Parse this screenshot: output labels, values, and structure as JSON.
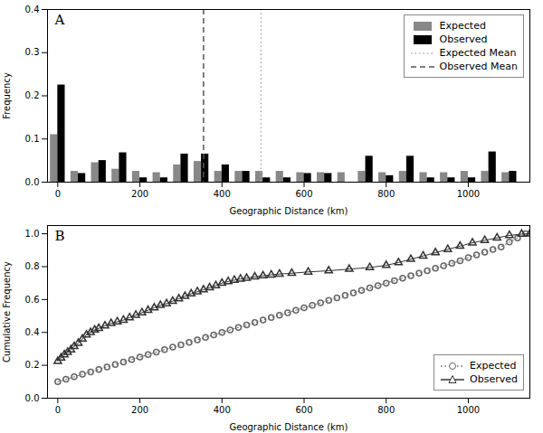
{
  "chart_data": [
    {
      "type": "bar",
      "title": "A",
      "xlabel": "Geographic Distance (km)",
      "ylabel": "Frequency",
      "x": [
        0,
        50,
        100,
        150,
        200,
        250,
        300,
        350,
        400,
        450,
        500,
        550,
        600,
        650,
        700,
        750,
        800,
        850,
        900,
        950,
        1000,
        1050,
        1100
      ],
      "series": [
        {
          "name": "Expected",
          "color": "#888888",
          "values": [
            0.11,
            0.025,
            0.045,
            0.03,
            0.025,
            0.022,
            0.04,
            0.048,
            0.025,
            0.025,
            0.025,
            0.025,
            0.022,
            0.022,
            0.022,
            0.025,
            0.022,
            0.025,
            0.022,
            0.022,
            0.025,
            0.025,
            0.022
          ]
        },
        {
          "name": "Observed",
          "color": "#000000",
          "values": [
            0.225,
            0.02,
            0.05,
            0.068,
            0.01,
            0.01,
            0.065,
            0.065,
            0.04,
            0.025,
            0.01,
            0.01,
            0.02,
            0.02,
            0.0,
            0.06,
            0.015,
            0.06,
            0.01,
            0.01,
            0.01,
            0.07,
            0.025
          ]
        },
        {
          "name": "Expected Mean",
          "type": "rule",
          "color": "#aaaaaa",
          "line_style": "dotted",
          "x": 495
        },
        {
          "name": "Observed Mean",
          "type": "rule",
          "color": "#555555",
          "line_style": "dashed",
          "x": 355
        }
      ],
      "xlim": [
        -25,
        1150
      ],
      "ylim": [
        0,
        0.4
      ],
      "xticks": [
        0,
        200,
        400,
        600,
        800,
        1000
      ],
      "yticks": [
        {
          "value": 0,
          "label": "0.0"
        },
        0.1,
        0.2,
        0.3,
        0.4
      ],
      "grid": false,
      "legend": "upper right"
    },
    {
      "type": "line",
      "title": "B",
      "xlabel": "Geographic Distance (km)",
      "ylabel": "Cumulative Frequency",
      "series": [
        {
          "name": "Expected",
          "color": "#666666",
          "marker": "circle",
          "line_style": "dotted",
          "x": [
            0,
            20,
            40,
            60,
            80,
            100,
            120,
            140,
            160,
            180,
            200,
            220,
            240,
            260,
            280,
            300,
            320,
            340,
            360,
            380,
            400,
            420,
            440,
            460,
            480,
            500,
            520,
            540,
            560,
            580,
            600,
            620,
            640,
            660,
            680,
            700,
            720,
            740,
            760,
            780,
            800,
            820,
            840,
            860,
            880,
            900,
            920,
            940,
            960,
            980,
            1000,
            1020,
            1040,
            1060,
            1080,
            1100,
            1120,
            1140
          ],
          "values": [
            0.1,
            0.115,
            0.13,
            0.145,
            0.16,
            0.175,
            0.19,
            0.205,
            0.22,
            0.235,
            0.25,
            0.265,
            0.28,
            0.295,
            0.31,
            0.325,
            0.34,
            0.355,
            0.37,
            0.385,
            0.4,
            0.415,
            0.43,
            0.445,
            0.46,
            0.475,
            0.49,
            0.505,
            0.52,
            0.535,
            0.55,
            0.565,
            0.58,
            0.595,
            0.61,
            0.625,
            0.64,
            0.655,
            0.67,
            0.685,
            0.7,
            0.715,
            0.73,
            0.745,
            0.76,
            0.775,
            0.79,
            0.805,
            0.82,
            0.835,
            0.855,
            0.872,
            0.888,
            0.904,
            0.92,
            0.95,
            0.975,
            1.0
          ]
        },
        {
          "name": "Observed",
          "color": "#333333",
          "marker": "triangle",
          "line_style": "solid",
          "x": [
            0,
            8,
            16,
            24,
            32,
            40,
            50,
            60,
            70,
            80,
            90,
            100,
            115,
            130,
            145,
            160,
            175,
            190,
            205,
            220,
            235,
            250,
            265,
            280,
            295,
            310,
            325,
            340,
            355,
            370,
            385,
            400,
            415,
            430,
            445,
            460,
            480,
            500,
            520,
            540,
            570,
            610,
            660,
            710,
            760,
            800,
            830,
            860,
            890,
            920,
            950,
            980,
            1010,
            1040,
            1070,
            1100,
            1130,
            1150
          ],
          "values": [
            0.225,
            0.245,
            0.265,
            0.28,
            0.295,
            0.315,
            0.335,
            0.36,
            0.385,
            0.4,
            0.415,
            0.425,
            0.44,
            0.455,
            0.465,
            0.475,
            0.49,
            0.505,
            0.52,
            0.535,
            0.55,
            0.565,
            0.575,
            0.59,
            0.605,
            0.62,
            0.635,
            0.648,
            0.66,
            0.672,
            0.685,
            0.7,
            0.71,
            0.718,
            0.725,
            0.73,
            0.738,
            0.745,
            0.75,
            0.755,
            0.76,
            0.768,
            0.775,
            0.785,
            0.795,
            0.808,
            0.825,
            0.845,
            0.865,
            0.885,
            0.905,
            0.925,
            0.945,
            0.96,
            0.975,
            0.99,
            0.998,
            1.0
          ]
        }
      ],
      "xlim": [
        -25,
        1150
      ],
      "ylim": [
        0,
        1.05
      ],
      "xticks": [
        0,
        200,
        400,
        600,
        800,
        1000
      ],
      "yticks": [
        {
          "value": 0,
          "label": "0.0"
        },
        0.2,
        0.4,
        0.6,
        0.8,
        {
          "value": 1.0,
          "label": "1.0"
        }
      ],
      "grid": false,
      "legend": "lower right"
    }
  ]
}
